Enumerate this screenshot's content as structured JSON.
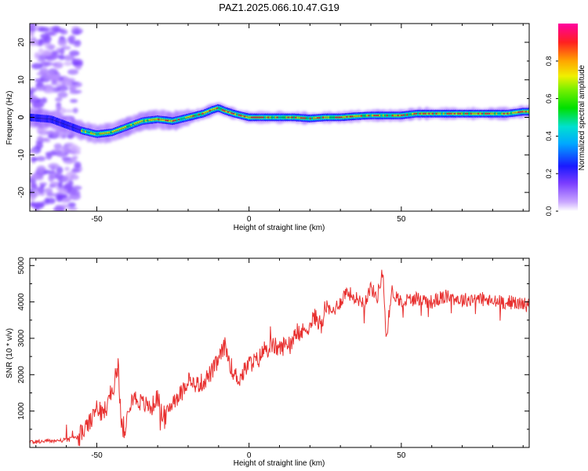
{
  "title": "PAZ1.2025.066.10.47.G19",
  "colorbar": {
    "label": "Normalized spectral amplitude",
    "ticks": [
      "0.0",
      "0.2",
      "0.4",
      "0.6",
      "0.8"
    ],
    "tick_values": [
      0.0,
      0.2,
      0.4,
      0.6,
      0.8
    ],
    "range": [
      0,
      1
    ]
  },
  "chart_data": [
    {
      "type": "heatmap",
      "xlabel": "Height of straight line (km)",
      "ylabel": "Frequency (Hz)",
      "xlim": [
        -72,
        92
      ],
      "ylim": [
        -25,
        25
      ],
      "xticks": [
        -50,
        0,
        50
      ],
      "yticks": [
        20,
        10,
        0,
        -10,
        -20
      ],
      "ridge": {
        "x": [
          -72,
          -65,
          -60,
          -55,
          -50,
          -45,
          -40,
          -35,
          -30,
          -25,
          -20,
          -15,
          -12,
          -10,
          -8,
          -5,
          0,
          5,
          10,
          15,
          20,
          25,
          30,
          35,
          40,
          45,
          50,
          55,
          60,
          65,
          70,
          75,
          80,
          85,
          90
        ],
        "frequency": [
          0,
          -0.5,
          -2,
          -3.5,
          -4.5,
          -4,
          -2.5,
          -1,
          -0.5,
          -1,
          0,
          1,
          2,
          2.5,
          1.8,
          1,
          0,
          0,
          0,
          0,
          -0.3,
          0,
          0,
          0.3,
          0.5,
          0.5,
          0.5,
          1,
          1,
          1,
          1,
          1,
          1,
          1,
          1.5
        ]
      },
      "noise_region_x": [
        -72,
        -56
      ]
    },
    {
      "type": "line",
      "xlabel": "Height of straight line (km)",
      "ylabel": "SNR (10 * v/v)",
      "xlim": [
        -72,
        92
      ],
      "ylim": [
        0,
        5200
      ],
      "xticks": [
        -50,
        0,
        50
      ],
      "yticks": [
        1000,
        2000,
        3000,
        4000,
        5000
      ],
      "color": "#e8302f",
      "series": [
        {
          "x": [
            -72,
            -65,
            -60,
            -56,
            -52,
            -50,
            -48,
            -45,
            -43,
            -42,
            -41,
            -40,
            -38,
            -35,
            -32,
            -30,
            -28,
            -25,
            -22,
            -20,
            -18,
            -15,
            -12,
            -10,
            -8,
            -5,
            -3,
            0,
            3,
            5,
            8,
            10,
            13,
            15,
            18,
            20,
            22,
            24,
            25,
            27,
            30,
            32,
            35,
            38,
            40,
            42,
            44,
            45,
            47,
            50,
            55,
            60,
            65,
            70,
            75,
            80,
            85,
            90,
            92
          ],
          "y": [
            150,
            180,
            200,
            300,
            700,
            1100,
            900,
            1500,
            2300,
            700,
            200,
            1100,
            1400,
            1200,
            1100,
            1400,
            700,
            1300,
            1500,
            1900,
            1700,
            1800,
            2100,
            2400,
            2800,
            2000,
            1900,
            2300,
            2400,
            2700,
            2800,
            2700,
            2900,
            3000,
            3200,
            3400,
            3600,
            3300,
            3900,
            3700,
            4000,
            4300,
            4100,
            4000,
            4400,
            4100,
            4900,
            3000,
            4300,
            4000,
            4100,
            4000,
            4150,
            4050,
            4100,
            4000,
            4000,
            3950,
            3900
          ]
        }
      ]
    }
  ]
}
